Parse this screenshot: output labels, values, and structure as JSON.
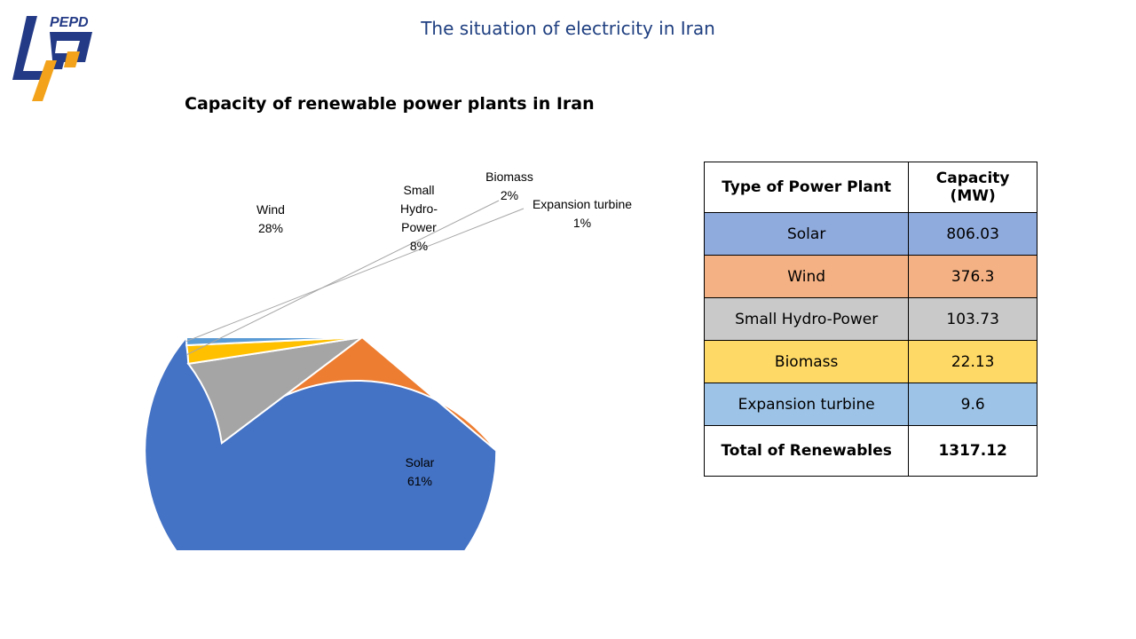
{
  "header": {
    "logo_text": "PEPD",
    "title": "The situation of electricity in Iran"
  },
  "chart_data": {
    "type": "pie",
    "title": "Capacity of renewable power plants in Iran",
    "slices": [
      {
        "label": "Solar",
        "value": 806.03,
        "percent_label": "61%",
        "color": "#4472C4"
      },
      {
        "label": "Wind",
        "value": 376.3,
        "percent_label": "28%",
        "color": "#ED7D31"
      },
      {
        "label": "Small Hydro-Power",
        "value": 103.73,
        "percent_label": "8%",
        "color": "#A5A5A5"
      },
      {
        "label": "Biomass",
        "value": 22.13,
        "percent_label": "2%",
        "color": "#FFC000"
      },
      {
        "label": "Expansion turbine",
        "value": 9.6,
        "percent_label": "1%",
        "color": "#5B9BD5"
      }
    ]
  },
  "table": {
    "headers": [
      "Type of Power Plant",
      "Capacity (MW)"
    ],
    "rows": [
      {
        "type": "Solar",
        "capacity": "806.03",
        "color": "#8FAADC"
      },
      {
        "type": "Wind",
        "capacity": "376.3",
        "color": "#F4B183"
      },
      {
        "type": "Small Hydro-Power",
        "capacity": "103.73",
        "color": "#C9C9C9"
      },
      {
        "type": "Biomass",
        "capacity": "22.13",
        "color": "#FFD966"
      },
      {
        "type": "Expansion turbine",
        "capacity": "9.6",
        "color": "#9DC3E6"
      }
    ],
    "total": {
      "label": "Total of Renewables",
      "value": "1317.12"
    }
  }
}
